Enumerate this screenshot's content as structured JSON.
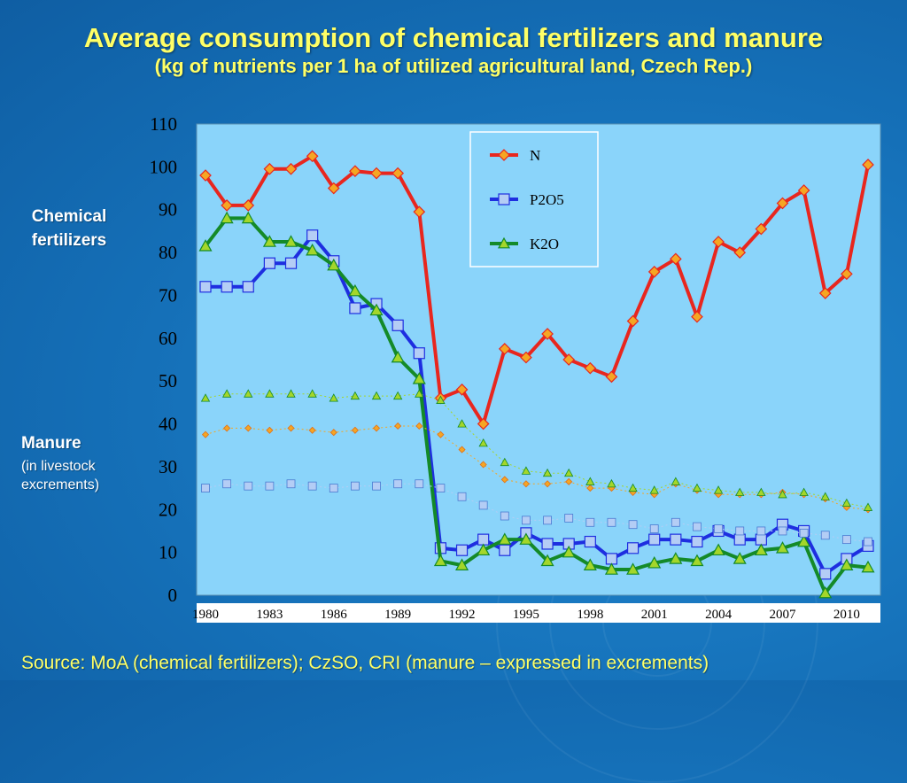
{
  "title": "Average consumption of chemical fertilizers and manure",
  "subtitle": "(kg of nutrients per 1 ha of utilized agricultural land, Czech Rep.)",
  "labels": {
    "chemical": "Chemical fertilizers",
    "manure": "Manure",
    "manure_sub": "(in livestock excrements)"
  },
  "source": "Source: MoA (chemical fertilizers); CzSO, CRI (manure – expressed in excrements)",
  "colors": {
    "plot_bg": "#8ad4fa",
    "N": "#e8261e",
    "N_marker": "#f5a623",
    "P2O5": "#1e2ee0",
    "P2O5_marker": "#b4cdf5",
    "K2O": "#148a28",
    "K2O_marker": "#a4d62a"
  },
  "chart_data": {
    "type": "line",
    "x": [
      1980,
      1981,
      1982,
      1983,
      1984,
      1985,
      1986,
      1987,
      1988,
      1989,
      1990,
      1991,
      1992,
      1993,
      1994,
      1995,
      1996,
      1997,
      1998,
      1999,
      2000,
      2001,
      2002,
      2003,
      2004,
      2005,
      2006,
      2007,
      2008,
      2009,
      2010,
      2011
    ],
    "x_tick_labels": [
      "1980",
      "1983",
      "1986",
      "1989",
      "1992",
      "1995",
      "1998",
      "2001",
      "2004",
      "2007",
      "2010"
    ],
    "y_tick_labels": [
      "0",
      "10",
      "20",
      "30",
      "40",
      "50",
      "60",
      "70",
      "80",
      "90",
      "100",
      "110"
    ],
    "ylim": [
      0,
      110
    ],
    "grid": false,
    "legend": "top-center",
    "series": [
      {
        "name": "N",
        "group": "chemical",
        "values": [
          98,
          91,
          91,
          99.5,
          99.5,
          102.5,
          95,
          99,
          98.5,
          98.5,
          89.5,
          46,
          48,
          40,
          57.5,
          55.5,
          61,
          55,
          53,
          51,
          64,
          75.5,
          78.5,
          65,
          82.5,
          80,
          85.5,
          91.5,
          94.5,
          70.5,
          75,
          100.5
        ]
      },
      {
        "name": "P2O5",
        "group": "chemical",
        "values": [
          72,
          72,
          72,
          77.5,
          77.5,
          84,
          78,
          67,
          68,
          63,
          56.5,
          11,
          10.5,
          13,
          10.5,
          14.5,
          12,
          12,
          12.5,
          8.5,
          11,
          13,
          13,
          12.5,
          15,
          13,
          13,
          16.5,
          15,
          5,
          8.5,
          11.5
        ]
      },
      {
        "name": "K2O",
        "group": "chemical",
        "values": [
          81.5,
          88,
          88,
          82.5,
          82.5,
          80.5,
          77,
          71,
          66.5,
          55.5,
          50.5,
          8,
          7,
          10.5,
          13,
          13,
          8,
          10,
          7,
          6,
          6,
          7.5,
          8.5,
          8,
          10.5,
          8.5,
          10.5,
          11,
          12.5,
          0.5,
          7,
          6.5
        ]
      },
      {
        "group": "manure",
        "values": [
          37.5,
          39,
          39,
          38.5,
          39,
          38.5,
          38,
          38.5,
          39,
          39.5,
          39.5,
          37.5,
          34,
          30.5,
          27,
          26,
          26,
          26.5,
          25,
          25,
          24,
          23.5,
          26,
          24.5,
          23.5,
          23.5,
          23.5,
          24,
          23.5,
          22.5,
          20.5,
          20
        ]
      },
      {
        "group": "manure",
        "values": [
          25,
          26,
          25.5,
          25.5,
          26,
          25.5,
          25,
          25.5,
          25.5,
          26,
          26,
          25,
          23,
          21,
          18.5,
          17.5,
          17.5,
          18,
          17,
          17,
          16.5,
          15.5,
          17,
          16,
          15.5,
          15,
          15,
          15,
          14.5,
          14,
          13,
          12.5
        ]
      },
      {
        "group": "manure",
        "values": [
          46,
          47,
          47,
          47,
          47,
          47,
          46,
          46.5,
          46.5,
          46.5,
          47,
          45.5,
          40,
          35.5,
          31,
          29,
          28.5,
          28.5,
          26.5,
          26,
          25,
          24.5,
          26.5,
          25,
          24.5,
          24,
          24,
          23.5,
          24,
          23,
          21.5,
          20.5
        ]
      }
    ]
  }
}
